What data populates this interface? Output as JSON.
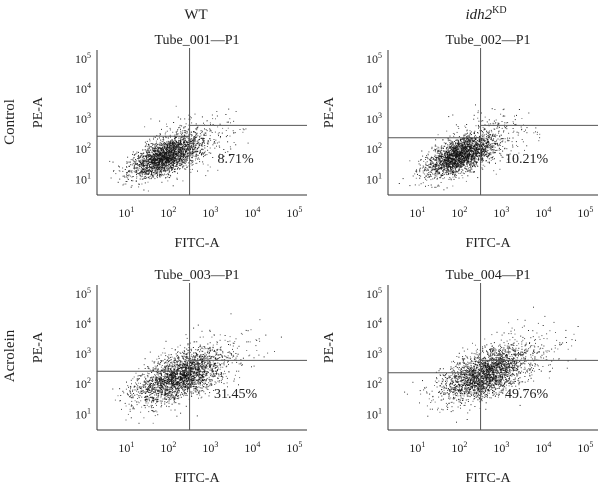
{
  "columns": {
    "left": "WT",
    "right_base": "idh2",
    "right_sup": "KD"
  },
  "rows": [
    "Control",
    "Acrolein"
  ],
  "chart_data": [
    {
      "type": "scatter",
      "title": "Tube_001—P1",
      "xlabel": "FITC-A",
      "ylabel": "PE-A",
      "xscale": "log",
      "yscale": "log",
      "xlim": [
        2,
        200000
      ],
      "ylim": [
        3,
        200000
      ],
      "xticks": [
        "10^1",
        "10^2",
        "10^3",
        "10^4",
        "10^5"
      ],
      "yticks": [
        "10^1",
        "10^2",
        "10^3",
        "10^4",
        "10^5"
      ],
      "gate_x": 320,
      "gate_y": 270,
      "gate_y_right": 620,
      "quadrant_label": "8.71%",
      "cluster_center": [
        90,
        60
      ],
      "percent_lower_right": 8.71
    },
    {
      "type": "scatter",
      "title": "Tube_002—P1",
      "xlabel": "FITC-A",
      "ylabel": "PE-A",
      "xscale": "log",
      "yscale": "log",
      "xlim": [
        2,
        200000
      ],
      "ylim": [
        3,
        200000
      ],
      "xticks": [
        "10^1",
        "10^2",
        "10^3",
        "10^4",
        "10^5"
      ],
      "yticks": [
        "10^1",
        "10^2",
        "10^3",
        "10^4",
        "10^5"
      ],
      "gate_x": 320,
      "gate_y": 240,
      "gate_y_right": 620,
      "quadrant_label": "10.21%",
      "cluster_center": [
        110,
        65
      ],
      "percent_lower_right": 10.21
    },
    {
      "type": "scatter",
      "title": "Tube_003—P1",
      "xlabel": "FITC-A",
      "ylabel": "PE-A",
      "xscale": "log",
      "yscale": "log",
      "xlim": [
        2,
        200000
      ],
      "ylim": [
        3,
        200000
      ],
      "xticks": [
        "10^1",
        "10^2",
        "10^3",
        "10^4",
        "10^5"
      ],
      "yticks": [
        "10^1",
        "10^2",
        "10^3",
        "10^4",
        "10^5"
      ],
      "gate_x": 320,
      "gate_y": 270,
      "gate_y_right": 620,
      "quadrant_label": "31.45%",
      "cluster_center": [
        180,
        180
      ],
      "percent_lower_right": 31.45
    },
    {
      "type": "scatter",
      "title": "Tube_004—P1",
      "xlabel": "FITC-A",
      "ylabel": "PE-A",
      "xscale": "log",
      "yscale": "log",
      "xlim": [
        2,
        200000
      ],
      "ylim": [
        3,
        200000
      ],
      "xticks": [
        "10^1",
        "10^2",
        "10^3",
        "10^4",
        "10^5"
      ],
      "yticks": [
        "10^1",
        "10^2",
        "10^3",
        "10^4",
        "10^5"
      ],
      "gate_x": 320,
      "gate_y": 240,
      "gate_y_right": 620,
      "quadrant_label": "49.76%",
      "cluster_center": [
        420,
        220
      ],
      "percent_lower_right": 49.76
    }
  ]
}
